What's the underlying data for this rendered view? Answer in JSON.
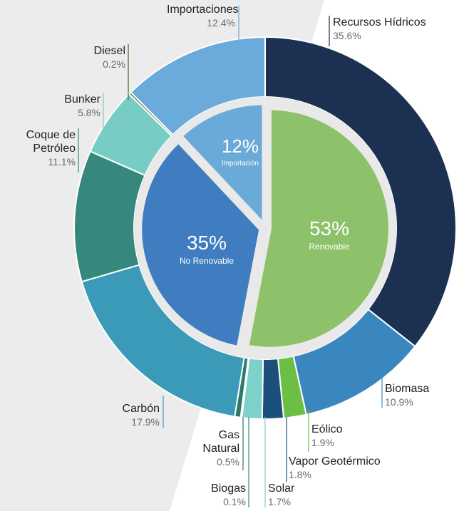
{
  "chart_data": {
    "type": "nested-donut",
    "outer": {
      "series": [
        {
          "name": "Recursos Hídricos",
          "value": 35.6,
          "value_label": "35.6%",
          "color": "#1c3152"
        },
        {
          "name": "Biomasa",
          "value": 10.9,
          "value_label": "10.9%",
          "color": "#3a87c0"
        },
        {
          "name": "Eólico",
          "value": 1.9,
          "value_label": "1.9%",
          "color": "#6cbf45"
        },
        {
          "name": "Vapor Geotérmico",
          "value": 1.8,
          "value_label": "1.8%",
          "color": "#1b4f7c"
        },
        {
          "name": "Solar",
          "value": 1.7,
          "value_label": "1.7%",
          "color": "#7dd1c9"
        },
        {
          "name": "Biogas",
          "value": 0.1,
          "value_label": "0.1%",
          "color": "#3a8a6a"
        },
        {
          "name": "Gas Natural",
          "value": 0.5,
          "value_label": "0.5%",
          "color": "#2d7a6b"
        },
        {
          "name": "Carbón",
          "value": 17.9,
          "value_label": "17.9%",
          "color": "#3a9ab8"
        },
        {
          "name": "Coque de Petróleo",
          "value": 11.1,
          "value_label": "11.1%",
          "color": "#35887b"
        },
        {
          "name": "Bunker",
          "value": 5.8,
          "value_label": "5.8%",
          "color": "#77cdc4"
        },
        {
          "name": "Diesel",
          "value": 0.2,
          "value_label": "0.2%",
          "color": "#3c6a2a"
        },
        {
          "name": "Importaciones",
          "value": 12.4,
          "value_label": "12.4%",
          "color": "#6babdc"
        }
      ]
    },
    "inner": {
      "series": [
        {
          "name": "Renovable",
          "value": 53,
          "value_label": "53%",
          "color": "#8dc26a"
        },
        {
          "name": "No Renovable",
          "value": 35,
          "value_label": "35%",
          "color": "#3f7cc0"
        },
        {
          "name": "Importación",
          "value": 12,
          "value_label": "12%",
          "color": "#6aaad8"
        }
      ]
    }
  }
}
